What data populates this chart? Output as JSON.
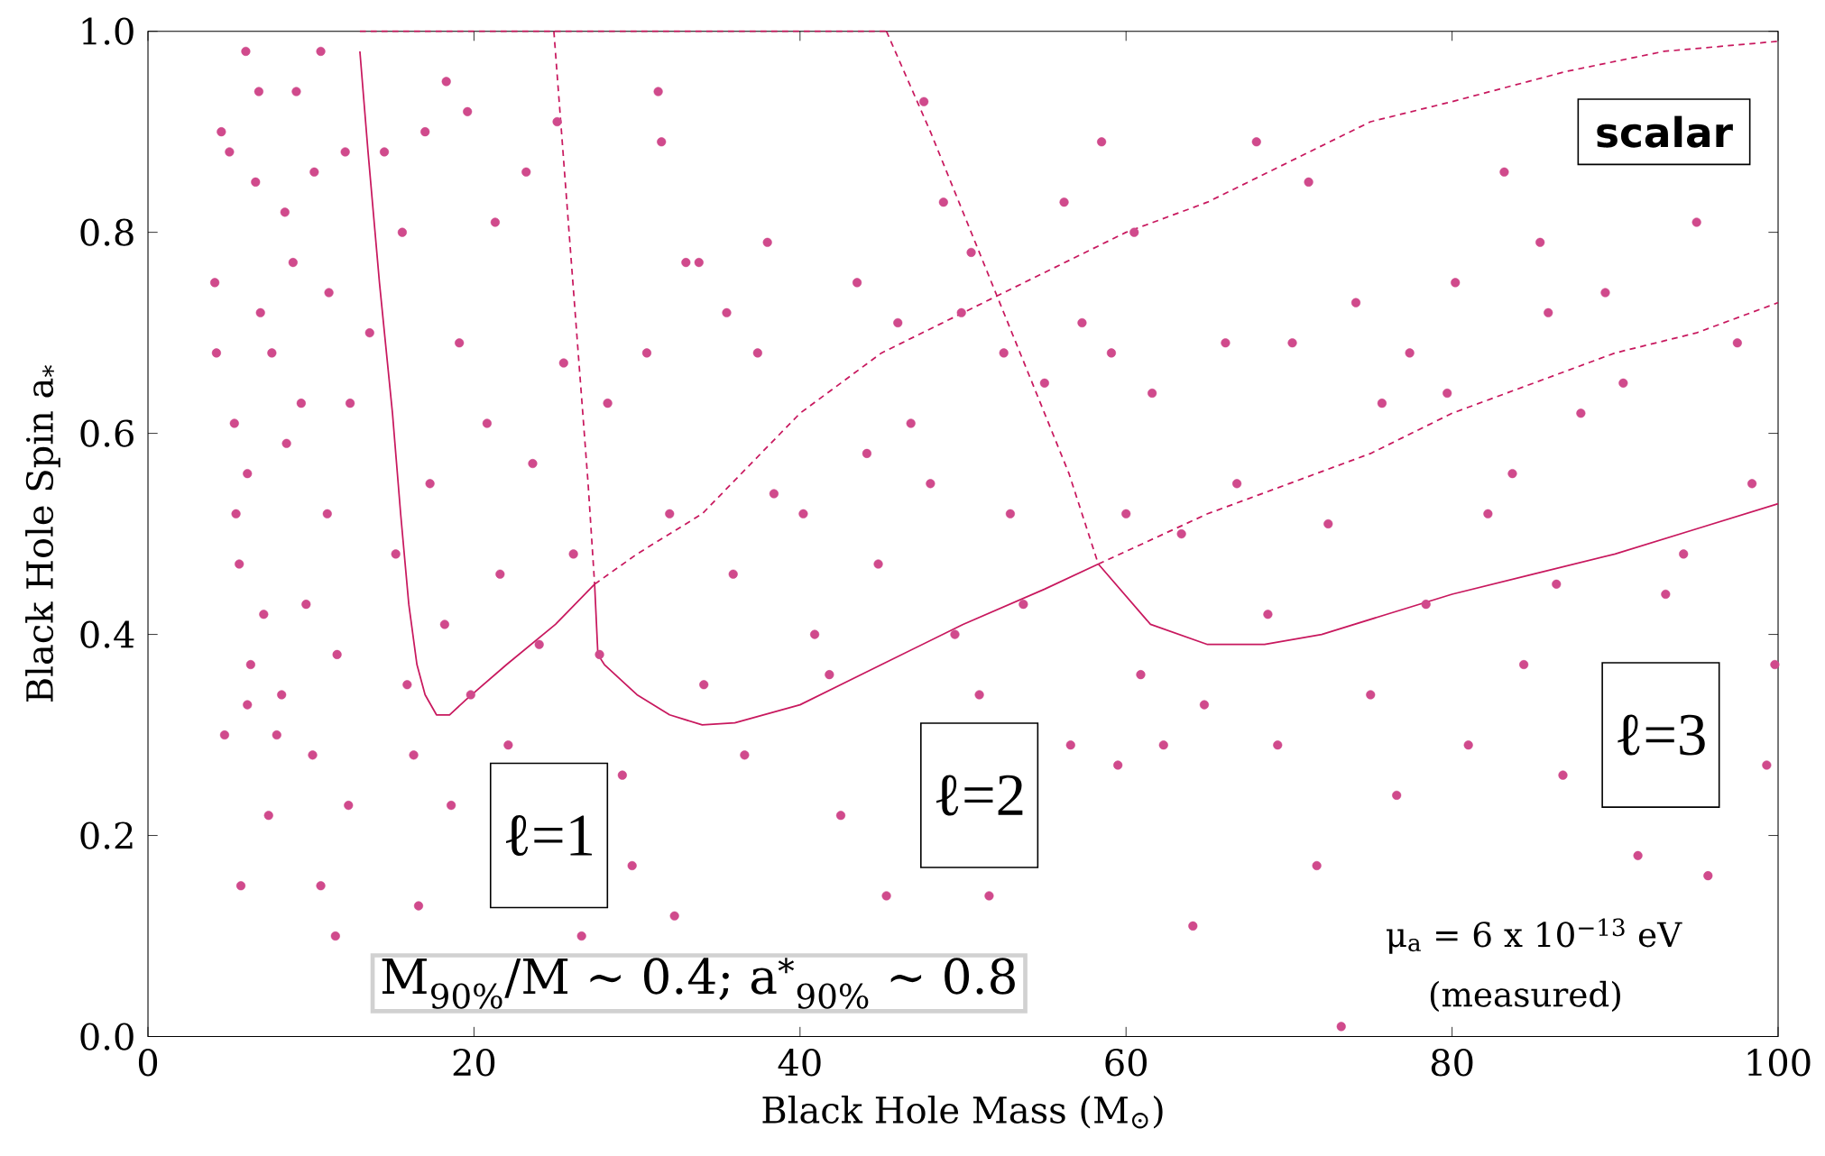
{
  "chart_data": {
    "type": "scatter",
    "xlabel": "Black Hole Mass (M$_{⊙}$)",
    "ylabel": "Black Hole Spin a$_{*}$",
    "xlim": [
      0,
      100
    ],
    "ylim": [
      0,
      1
    ],
    "xticks": [
      0,
      20,
      40,
      60,
      80,
      100
    ],
    "yticks": [
      {
        "value": 0,
        "label": "0.0"
      },
      {
        "value": 0.2,
        "label": "0.2"
      },
      {
        "value": 0.4,
        "label": "0.4"
      },
      {
        "value": 0.6,
        "label": "0.6"
      },
      {
        "value": 0.8,
        "label": "0.8"
      },
      {
        "value": 1,
        "label": "1.0"
      }
    ],
    "grid": false,
    "series": [
      {
        "marker": "circle",
        "color": "#d04a8c",
        "x": [
          4.1,
          4.5,
          4.2,
          4.7,
          5.0,
          5.3,
          5.4,
          5.6,
          6.0,
          6.3,
          6.1,
          6.6,
          6.8,
          6.9,
          6.1,
          7.1,
          7.4,
          7.6,
          8.4,
          7.9,
          8.2,
          8.5,
          8.9,
          9.1,
          9.4,
          9.7,
          10.1,
          10.2,
          10.6,
          11.0,
          11.1,
          11.5,
          11.6,
          12.1,
          12.3,
          12.4,
          10.6,
          5.7,
          13.6,
          14.5,
          15.2,
          15.6,
          15.9,
          16.3,
          16.6,
          17.0,
          17.3,
          18.3,
          18.2,
          18.6,
          19.1,
          19.6,
          19.8,
          20.8,
          21.3,
          21.6,
          22.1,
          23.2,
          23.6,
          24.0,
          25.1,
          25.5,
          26.1,
          26.6,
          27.7,
          28.2,
          29.1,
          29.7,
          30.6,
          31.3,
          31.5,
          32.0,
          32.3,
          33.0,
          33.8,
          34.1,
          35.5,
          35.9,
          36.6,
          37.4,
          38.0,
          38.4,
          40.2,
          40.9,
          41.8,
          42.5,
          43.5,
          44.1,
          44.8,
          45.3,
          46.0,
          46.8,
          47.6,
          48.0,
          48.8,
          49.5,
          49.9,
          50.5,
          51.0,
          51.6,
          52.5,
          52.9,
          53.7,
          55.0,
          56.2,
          56.6,
          57.3,
          58.5,
          59.1,
          59.5,
          60.0,
          60.5,
          60.9,
          61.6,
          62.3,
          63.4,
          64.1,
          64.8,
          66.1,
          66.8,
          68.0,
          68.7,
          69.3,
          70.2,
          71.2,
          71.7,
          72.4,
          73.2,
          74.1,
          75.0,
          75.7,
          76.6,
          77.4,
          78.4,
          79.7,
          80.2,
          81.0,
          82.2,
          83.2,
          83.7,
          84.4,
          85.4,
          85.9,
          86.4,
          86.8,
          87.9,
          89.4,
          90.5,
          91.4,
          93.1,
          94.2,
          95.0,
          95.7,
          97.5,
          98.4,
          99.3,
          99.8
        ],
        "values": [
          0.75,
          0.9,
          0.68,
          0.3,
          0.88,
          0.61,
          0.52,
          0.47,
          0.98,
          0.37,
          0.33,
          0.85,
          0.94,
          0.72,
          0.56,
          0.42,
          0.22,
          0.68,
          0.82,
          0.3,
          0.34,
          0.59,
          0.77,
          0.94,
          0.63,
          0.43,
          0.28,
          0.86,
          0.98,
          0.52,
          0.74,
          0.1,
          0.38,
          0.88,
          0.23,
          0.63,
          0.15,
          0.15,
          0.7,
          0.88,
          0.48,
          0.8,
          0.35,
          0.28,
          0.13,
          0.9,
          0.55,
          0.95,
          0.41,
          0.23,
          0.69,
          0.92,
          0.34,
          0.61,
          0.81,
          0.46,
          0.29,
          0.86,
          0.57,
          0.39,
          0.91,
          0.67,
          0.48,
          0.1,
          0.38,
          0.63,
          0.26,
          0.17,
          0.68,
          0.94,
          0.89,
          0.52,
          0.12,
          0.77,
          0.77,
          0.35,
          0.72,
          0.46,
          0.28,
          0.68,
          0.79,
          0.54,
          0.52,
          0.4,
          0.36,
          0.22,
          0.75,
          0.58,
          0.47,
          0.14,
          0.71,
          0.61,
          0.93,
          0.55,
          0.83,
          0.4,
          0.72,
          0.78,
          0.34,
          0.14,
          0.68,
          0.52,
          0.43,
          0.65,
          0.83,
          0.29,
          0.71,
          0.89,
          0.68,
          0.27,
          0.52,
          0.8,
          0.36,
          0.64,
          0.29,
          0.5,
          0.11,
          0.33,
          0.69,
          0.55,
          0.89,
          0.42,
          0.29,
          0.69,
          0.85,
          0.17,
          0.51,
          0.01,
          0.73,
          0.34,
          0.63,
          0.24,
          0.68,
          0.43,
          0.64,
          0.75,
          0.29,
          0.52,
          0.86,
          0.56,
          0.37,
          0.79,
          0.72,
          0.45,
          0.26,
          0.62,
          0.74,
          0.65,
          0.18,
          0.44,
          0.48,
          0.81,
          0.16,
          0.69,
          0.55,
          0.27,
          0.37
        ]
      },
      {
        "type": "line",
        "line_style": "solid",
        "color": "#c8185e",
        "x": [
          13.0,
          13.5,
          14.2,
          15.0,
          15.5,
          16.0,
          16.5,
          17.0,
          17.7,
          18.5,
          19.5,
          22,
          25,
          27.4
        ],
        "values": [
          0.98,
          0.88,
          0.75,
          0.62,
          0.52,
          0.43,
          0.37,
          0.34,
          0.32,
          0.32,
          0.335,
          0.37,
          0.41,
          0.45
        ]
      },
      {
        "type": "line",
        "line_style": "solid",
        "color": "#c8185e",
        "x": [
          27.4,
          27.6,
          28,
          30,
          32,
          34,
          36,
          40,
          45,
          50,
          55,
          58.3
        ],
        "values": [
          0.45,
          0.38,
          0.37,
          0.34,
          0.32,
          0.31,
          0.312,
          0.33,
          0.37,
          0.41,
          0.445,
          0.47
        ]
      },
      {
        "type": "line",
        "line_style": "solid",
        "color": "#c8185e",
        "x": [
          58.3,
          61.5,
          65,
          68.5,
          72,
          76,
          80,
          85,
          90,
          95,
          100
        ],
        "values": [
          0.47,
          0.41,
          0.39,
          0.39,
          0.4,
          0.42,
          0.44,
          0.46,
          0.48,
          0.505,
          0.53
        ]
      },
      {
        "type": "line",
        "line_style": "dashed",
        "color": "#c8185e",
        "x": [
          13,
          45.3
        ],
        "values": [
          1.0,
          1.0
        ]
      },
      {
        "type": "line",
        "line_style": "dashed",
        "color": "#c8185e",
        "x": [
          24.9,
          25.6,
          26.3,
          27.0,
          27.4
        ],
        "values": [
          1.0,
          0.85,
          0.7,
          0.55,
          0.45
        ]
      },
      {
        "type": "line",
        "line_style": "dashed",
        "color": "#c8185e",
        "x": [
          27.4,
          30,
          34,
          40,
          45,
          50,
          55,
          60,
          65,
          70,
          75,
          80,
          87,
          93,
          100
        ],
        "values": [
          0.45,
          0.48,
          0.52,
          0.62,
          0.68,
          0.72,
          0.76,
          0.8,
          0.83,
          0.87,
          0.91,
          0.93,
          0.96,
          0.98,
          0.99
        ]
      },
      {
        "type": "line",
        "line_style": "dashed",
        "color": "#c8185e",
        "x": [
          45.3,
          48,
          51,
          54,
          56.5,
          58.3
        ],
        "values": [
          1.0,
          0.9,
          0.78,
          0.66,
          0.56,
          0.47
        ]
      },
      {
        "type": "line",
        "line_style": "dashed",
        "color": "#c8185e",
        "x": [
          58.3,
          65,
          70,
          75,
          80,
          85,
          90,
          95,
          100
        ],
        "values": [
          0.47,
          0.52,
          0.55,
          0.58,
          0.62,
          0.65,
          0.68,
          0.7,
          0.73
        ]
      }
    ],
    "annotations": [
      "scalar",
      "ℓ=1",
      "ℓ=2",
      "ℓ=3",
      "μ$_{a}$ = 6 x 10$^{−13}$ eV",
      "(measured)",
      "M$_{90%}$/M ∼ 0.4;      a$^{*}$$_{90%}$ ∼ 0.8"
    ]
  }
}
